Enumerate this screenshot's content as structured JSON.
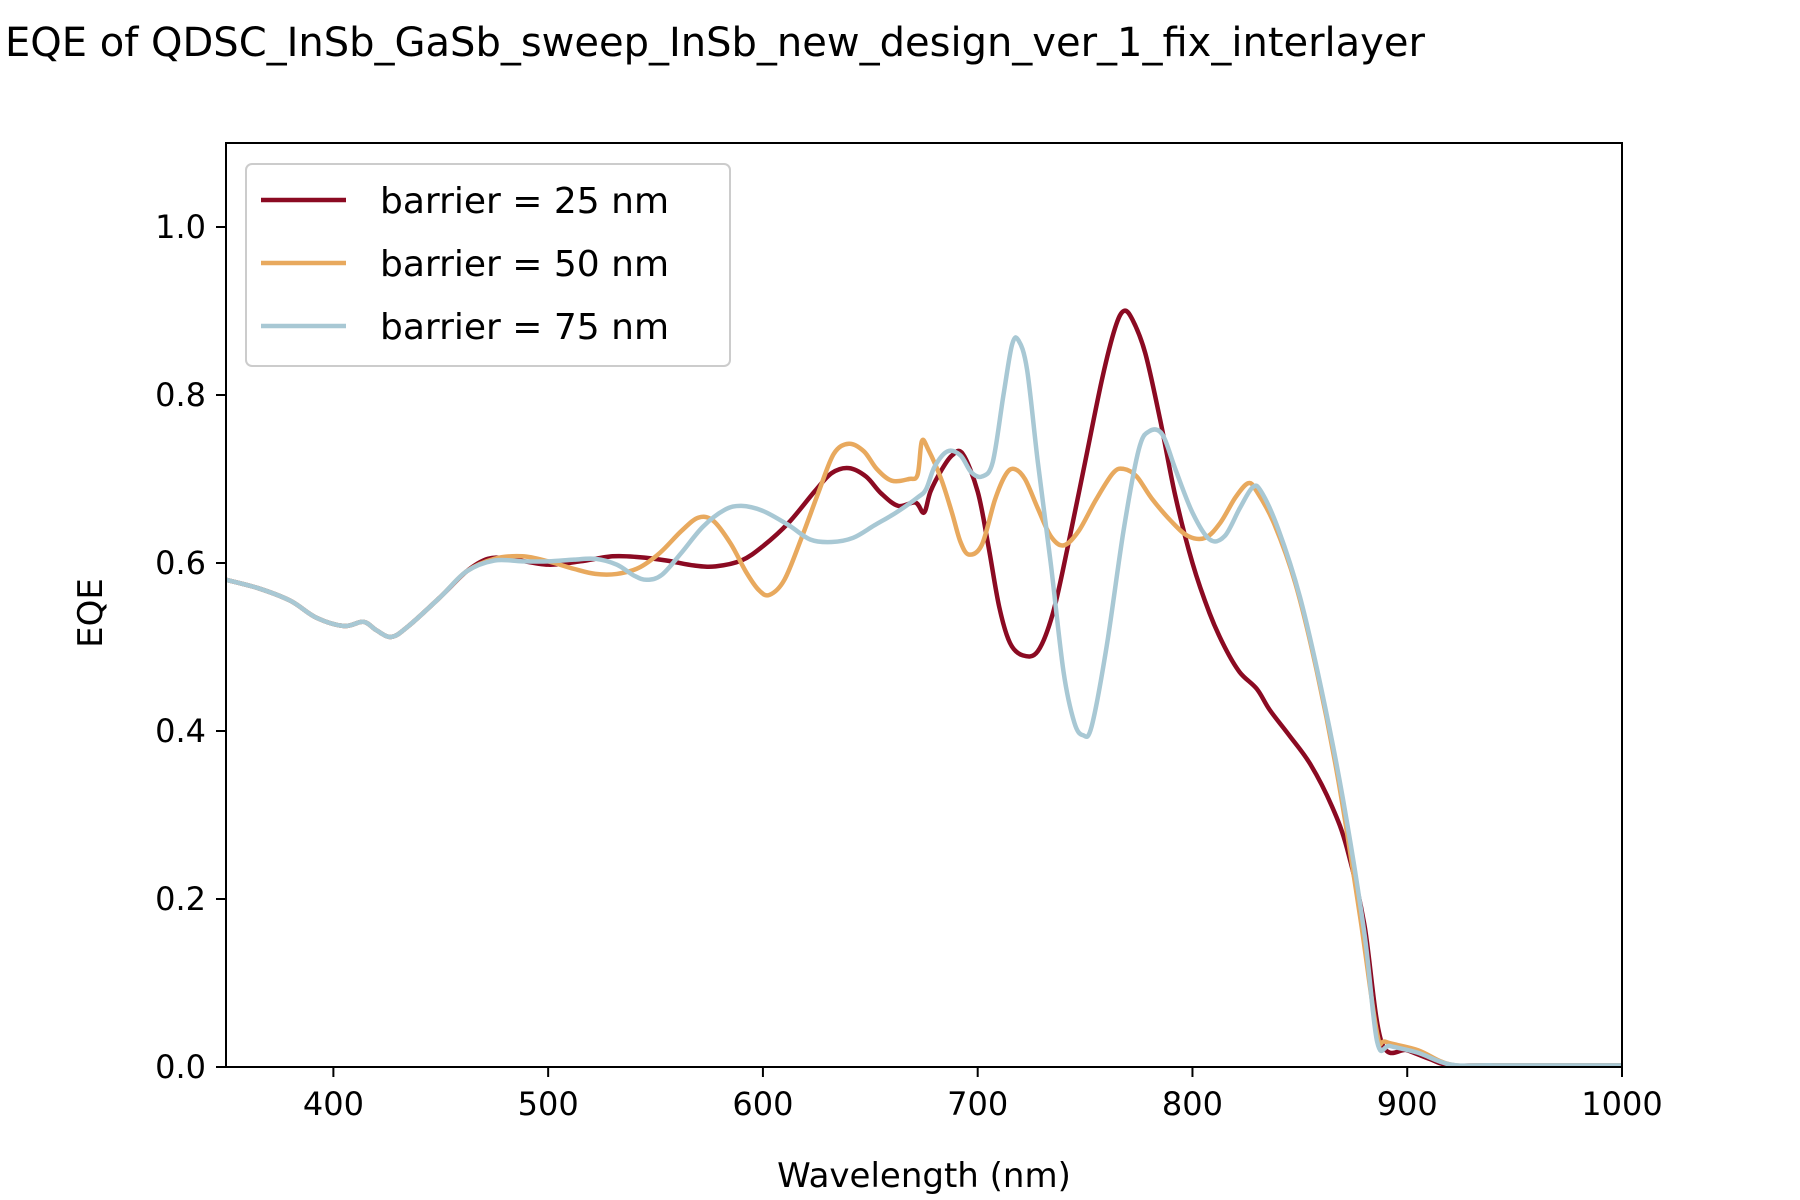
{
  "chart_data": {
    "type": "line",
    "title": "EQE of  QDSC_InSb_GaSb_sweep_InSb_new_design_ver_1_fix_interlayer",
    "xlabel": "Wavelength (nm)",
    "ylabel": "EQE",
    "xlim": [
      350,
      1000
    ],
    "ylim": [
      0,
      1.1
    ],
    "xticks": [
      400,
      500,
      600,
      700,
      800,
      900,
      1000
    ],
    "yticks": [
      0.0,
      0.2,
      0.4,
      0.6,
      0.8,
      1.0
    ],
    "xtick_labels": [
      "400",
      "500",
      "600",
      "700",
      "800",
      "900",
      "1000"
    ],
    "ytick_labels": [
      "0.0",
      "0.2",
      "0.4",
      "0.6",
      "0.8",
      "1.0"
    ],
    "grid": false,
    "legend_position": "top-left",
    "series": [
      {
        "name": "barrier = 25 nm",
        "color": "#8b0a22",
        "points": [
          [
            350,
            0.58
          ],
          [
            365,
            0.57
          ],
          [
            380,
            0.555
          ],
          [
            392,
            0.535
          ],
          [
            405,
            0.525
          ],
          [
            414,
            0.53
          ],
          [
            420,
            0.52
          ],
          [
            427,
            0.512
          ],
          [
            435,
            0.525
          ],
          [
            450,
            0.56
          ],
          [
            462,
            0.59
          ],
          [
            472,
            0.605
          ],
          [
            482,
            0.605
          ],
          [
            500,
            0.598
          ],
          [
            515,
            0.602
          ],
          [
            530,
            0.608
          ],
          [
            542,
            0.607
          ],
          [
            555,
            0.603
          ],
          [
            568,
            0.597
          ],
          [
            578,
            0.596
          ],
          [
            590,
            0.603
          ],
          [
            600,
            0.62
          ],
          [
            612,
            0.648
          ],
          [
            624,
            0.685
          ],
          [
            632,
            0.707
          ],
          [
            640,
            0.713
          ],
          [
            648,
            0.703
          ],
          [
            655,
            0.683
          ],
          [
            663,
            0.668
          ],
          [
            671,
            0.672
          ],
          [
            675,
            0.66
          ],
          [
            678,
            0.685
          ],
          [
            683,
            0.71
          ],
          [
            688,
            0.728
          ],
          [
            693,
            0.73
          ],
          [
            700,
            0.685
          ],
          [
            705,
            0.62
          ],
          [
            710,
            0.548
          ],
          [
            715,
            0.505
          ],
          [
            721,
            0.49
          ],
          [
            728,
            0.495
          ],
          [
            735,
            0.54
          ],
          [
            742,
            0.62
          ],
          [
            750,
            0.72
          ],
          [
            758,
            0.82
          ],
          [
            764,
            0.88
          ],
          [
            768,
            0.9
          ],
          [
            772,
            0.89
          ],
          [
            778,
            0.85
          ],
          [
            785,
            0.77
          ],
          [
            792,
            0.68
          ],
          [
            800,
            0.6
          ],
          [
            808,
            0.54
          ],
          [
            815,
            0.5
          ],
          [
            822,
            0.47
          ],
          [
            830,
            0.45
          ],
          [
            836,
            0.425
          ],
          [
            845,
            0.395
          ],
          [
            855,
            0.36
          ],
          [
            865,
            0.31
          ],
          [
            872,
            0.26
          ],
          [
            880,
            0.17
          ],
          [
            888,
            0.03
          ],
          [
            900,
            0.02
          ],
          [
            910,
            0.01
          ],
          [
            920,
            0.002
          ],
          [
            940,
            0.002
          ],
          [
            1000,
            0.002
          ]
        ]
      },
      {
        "name": "barrier = 50 nm",
        "color": "#e8a95e",
        "points": [
          [
            350,
            0.58
          ],
          [
            365,
            0.57
          ],
          [
            380,
            0.555
          ],
          [
            392,
            0.535
          ],
          [
            405,
            0.525
          ],
          [
            414,
            0.53
          ],
          [
            420,
            0.52
          ],
          [
            427,
            0.512
          ],
          [
            435,
            0.525
          ],
          [
            450,
            0.56
          ],
          [
            462,
            0.59
          ],
          [
            475,
            0.605
          ],
          [
            488,
            0.608
          ],
          [
            500,
            0.602
          ],
          [
            512,
            0.593
          ],
          [
            522,
            0.587
          ],
          [
            532,
            0.587
          ],
          [
            542,
            0.594
          ],
          [
            552,
            0.612
          ],
          [
            562,
            0.638
          ],
          [
            570,
            0.654
          ],
          [
            577,
            0.65
          ],
          [
            585,
            0.623
          ],
          [
            592,
            0.59
          ],
          [
            598,
            0.568
          ],
          [
            603,
            0.562
          ],
          [
            610,
            0.58
          ],
          [
            618,
            0.63
          ],
          [
            626,
            0.685
          ],
          [
            633,
            0.73
          ],
          [
            640,
            0.742
          ],
          [
            647,
            0.733
          ],
          [
            653,
            0.712
          ],
          [
            660,
            0.698
          ],
          [
            668,
            0.7
          ],
          [
            672,
            0.705
          ],
          [
            674,
            0.745
          ],
          [
            677,
            0.735
          ],
          [
            683,
            0.7
          ],
          [
            688,
            0.66
          ],
          [
            692,
            0.625
          ],
          [
            696,
            0.61
          ],
          [
            702,
            0.622
          ],
          [
            708,
            0.675
          ],
          [
            713,
            0.705
          ],
          [
            717,
            0.712
          ],
          [
            722,
            0.7
          ],
          [
            728,
            0.665
          ],
          [
            734,
            0.632
          ],
          [
            740,
            0.621
          ],
          [
            747,
            0.638
          ],
          [
            755,
            0.675
          ],
          [
            763,
            0.707
          ],
          [
            768,
            0.712
          ],
          [
            774,
            0.703
          ],
          [
            781,
            0.677
          ],
          [
            790,
            0.65
          ],
          [
            798,
            0.632
          ],
          [
            806,
            0.63
          ],
          [
            813,
            0.648
          ],
          [
            820,
            0.678
          ],
          [
            826,
            0.695
          ],
          [
            830,
            0.685
          ],
          [
            838,
            0.647
          ],
          [
            848,
            0.575
          ],
          [
            858,
            0.47
          ],
          [
            868,
            0.34
          ],
          [
            878,
            0.18
          ],
          [
            886,
            0.04
          ],
          [
            890,
            0.03
          ],
          [
            905,
            0.02
          ],
          [
            920,
            0.003
          ],
          [
            940,
            0.002
          ],
          [
            1000,
            0.002
          ]
        ]
      },
      {
        "name": "barrier = 75 nm",
        "color": "#a8c8d4",
        "points": [
          [
            350,
            0.58
          ],
          [
            365,
            0.57
          ],
          [
            380,
            0.555
          ],
          [
            392,
            0.535
          ],
          [
            405,
            0.525
          ],
          [
            414,
            0.53
          ],
          [
            420,
            0.52
          ],
          [
            427,
            0.512
          ],
          [
            435,
            0.525
          ],
          [
            450,
            0.56
          ],
          [
            462,
            0.59
          ],
          [
            475,
            0.603
          ],
          [
            488,
            0.602
          ],
          [
            500,
            0.602
          ],
          [
            512,
            0.604
          ],
          [
            522,
            0.605
          ],
          [
            532,
            0.598
          ],
          [
            540,
            0.585
          ],
          [
            546,
            0.58
          ],
          [
            553,
            0.586
          ],
          [
            562,
            0.612
          ],
          [
            572,
            0.643
          ],
          [
            582,
            0.663
          ],
          [
            590,
            0.668
          ],
          [
            600,
            0.662
          ],
          [
            612,
            0.645
          ],
          [
            622,
            0.628
          ],
          [
            632,
            0.625
          ],
          [
            642,
            0.63
          ],
          [
            652,
            0.645
          ],
          [
            662,
            0.66
          ],
          [
            672,
            0.678
          ],
          [
            676,
            0.688
          ],
          [
            680,
            0.715
          ],
          [
            686,
            0.733
          ],
          [
            692,
            0.728
          ],
          [
            697,
            0.708
          ],
          [
            702,
            0.703
          ],
          [
            707,
            0.72
          ],
          [
            712,
            0.8
          ],
          [
            716,
            0.86
          ],
          [
            719,
            0.865
          ],
          [
            723,
            0.83
          ],
          [
            728,
            0.72
          ],
          [
            734,
            0.6
          ],
          [
            740,
            0.47
          ],
          [
            745,
            0.41
          ],
          [
            749,
            0.395
          ],
          [
            753,
            0.405
          ],
          [
            760,
            0.5
          ],
          [
            768,
            0.64
          ],
          [
            775,
            0.735
          ],
          [
            780,
            0.757
          ],
          [
            786,
            0.753
          ],
          [
            792,
            0.712
          ],
          [
            800,
            0.66
          ],
          [
            808,
            0.628
          ],
          [
            815,
            0.632
          ],
          [
            822,
            0.665
          ],
          [
            828,
            0.69
          ],
          [
            832,
            0.685
          ],
          [
            840,
            0.64
          ],
          [
            850,
            0.56
          ],
          [
            860,
            0.45
          ],
          [
            870,
            0.32
          ],
          [
            880,
            0.16
          ],
          [
            886,
            0.03
          ],
          [
            892,
            0.025
          ],
          [
            905,
            0.017
          ],
          [
            920,
            0.003
          ],
          [
            940,
            0.002
          ],
          [
            1000,
            0.002
          ]
        ]
      }
    ]
  }
}
